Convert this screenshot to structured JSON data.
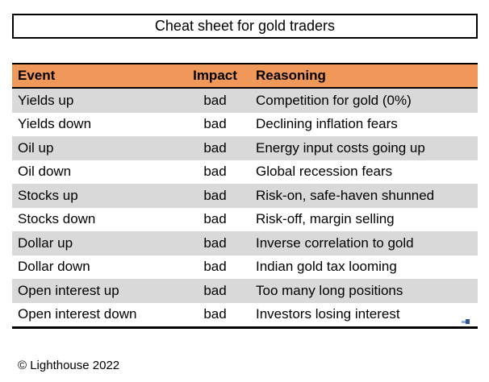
{
  "title": "Cheat sheet for gold traders",
  "table": {
    "headers": [
      "Event",
      "Impact",
      "Reasoning"
    ],
    "rows": [
      {
        "event": "Yields up",
        "impact": "bad",
        "reasoning": "Competition for gold (0%)"
      },
      {
        "event": "Yields down",
        "impact": "bad",
        "reasoning": "Declining inflation fears"
      },
      {
        "event": "Oil up",
        "impact": "bad",
        "reasoning": "Energy input costs going up"
      },
      {
        "event": "Oil down",
        "impact": "bad",
        "reasoning": "Global recession fears"
      },
      {
        "event": "Stocks up",
        "impact": "bad",
        "reasoning": "Risk-on, safe-haven shunned"
      },
      {
        "event": "Stocks down",
        "impact": "bad",
        "reasoning": "Risk-off, margin selling"
      },
      {
        "event": "Dollar up",
        "impact": "bad",
        "reasoning": "Inverse correlation to gold"
      },
      {
        "event": "Dollar down",
        "impact": "bad",
        "reasoning": "Indian gold tax looming"
      },
      {
        "event": "Open interest up",
        "impact": "bad",
        "reasoning": "Too many long positions"
      },
      {
        "event": "Open interest down",
        "impact": "bad",
        "reasoning": "Investors losing interest"
      }
    ]
  },
  "footer": "© Lighthouse 2022",
  "icons": {
    "anchor_handle": "object-anchor-handle"
  },
  "colors": {
    "header_bg": "#F0975A",
    "row_stripe_bg": "#D9D9D9",
    "row_bg": "#FFFFFF",
    "border": "#000000",
    "handle_dark_blue": "#2F5597",
    "handle_light_blue": "#8FAADC"
  }
}
